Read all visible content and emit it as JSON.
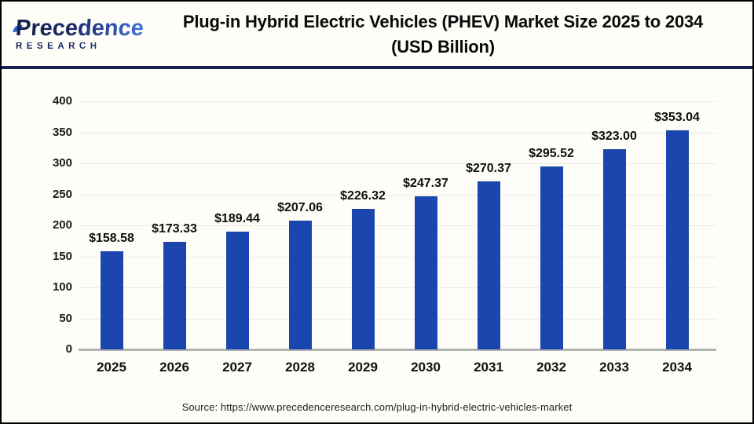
{
  "header": {
    "logo": {
      "brand": "Precedence",
      "sub": "RESEARCH"
    },
    "title_line1": "Plug-in Hybrid Electric Vehicles (PHEV) Market Size 2025 to 2034",
    "title_line2": "(USD Billion)"
  },
  "chart_data": {
    "type": "bar",
    "title": "Plug-in Hybrid Electric Vehicles (PHEV) Market Size 2025 to 2034 (USD Billion)",
    "categories": [
      "2025",
      "2026",
      "2027",
      "2028",
      "2029",
      "2030",
      "2031",
      "2032",
      "2033",
      "2034"
    ],
    "values": [
      158.58,
      173.33,
      189.44,
      207.06,
      226.32,
      247.37,
      270.37,
      295.52,
      323.0,
      353.04
    ],
    "labels": [
      "$158.58",
      "$173.33",
      "$189.44",
      "$207.06",
      "$226.32",
      "$247.37",
      "$270.37",
      "$295.52",
      "$323.00",
      "$353.04"
    ],
    "xlabel": "",
    "ylabel": "",
    "ylim": [
      0,
      400
    ],
    "yticks": [
      0,
      50,
      100,
      150,
      200,
      250,
      300,
      350,
      400
    ],
    "grid": true,
    "legend": "none",
    "bar_color": "#1B46AD"
  },
  "colors": {
    "bar": "#1B46AD",
    "separator": "#1A2150",
    "logo_navy": "#1B2A6B",
    "logo_blue": "#3E73D8",
    "gridline": "#EBE9E4",
    "axis": "#B3B3B3",
    "background": "#FFFDF8",
    "text": "#0A0A0A"
  },
  "footer": {
    "source": "Source: https://www.precedenceresearch.com/plug-in-hybrid-electric-vehicles-market"
  }
}
